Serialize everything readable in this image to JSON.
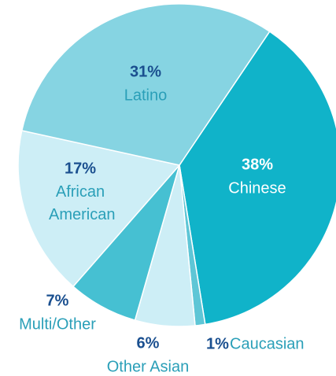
{
  "chart_data": {
    "type": "pie",
    "categories": [
      "Chinese",
      "Caucasian",
      "Other Asian",
      "Multi/Other",
      "African American",
      "Latino"
    ],
    "values": [
      38,
      1,
      6,
      7,
      17,
      31
    ],
    "value_labels": [
      "38%",
      "1%",
      "6%",
      "7%",
      "17%",
      "31%"
    ],
    "colors": [
      "#10b3c9",
      "#5ec6d6",
      "#cdeef6",
      "#46c0d2",
      "#cdeef6",
      "#86d4e2"
    ]
  }
}
